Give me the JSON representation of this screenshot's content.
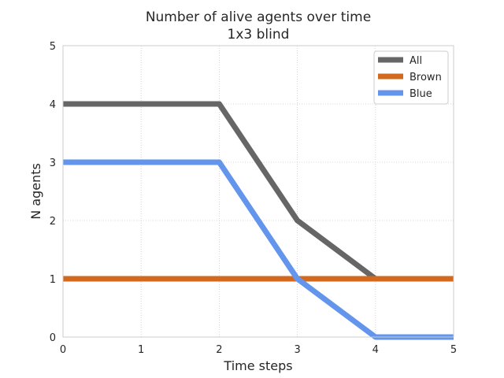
{
  "chart_data": {
    "type": "line",
    "title": [
      "Number of alive agents over time",
      "1x3 blind"
    ],
    "xlabel": "Time steps",
    "ylabel": "N agents",
    "x": [
      0,
      1,
      2,
      3,
      4,
      5
    ],
    "xticks": [
      "0",
      "1",
      "2",
      "3",
      "4",
      "5"
    ],
    "yticks": [
      "0",
      "1",
      "2",
      "3",
      "4",
      "5"
    ],
    "xlim": [
      0,
      5
    ],
    "ylim": [
      0,
      5
    ],
    "grid": true,
    "legend_position": "top-right",
    "series": [
      {
        "name": "All",
        "color": "#666666",
        "values": [
          4,
          4,
          4,
          2,
          1,
          1
        ]
      },
      {
        "name": "Brown",
        "color": "#d2691e",
        "values": [
          1,
          1,
          1,
          1,
          1,
          1
        ]
      },
      {
        "name": "Blue",
        "color": "#6495ed",
        "values": [
          3,
          3,
          3,
          1,
          0,
          0
        ]
      }
    ]
  }
}
